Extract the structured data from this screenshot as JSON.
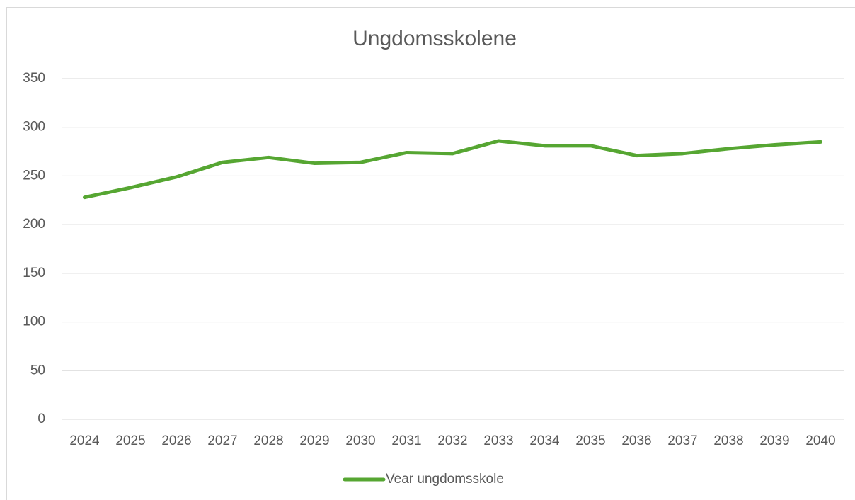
{
  "chart_data": {
    "type": "line",
    "title": "Ungdomsskolene",
    "categories": [
      "2024",
      "2025",
      "2026",
      "2027",
      "2028",
      "2029",
      "2030",
      "2031",
      "2032",
      "2033",
      "2034",
      "2035",
      "2036",
      "2037",
      "2038",
      "2039",
      "2040"
    ],
    "series": [
      {
        "name": "Vear ungdomsskole",
        "color": "#56a632",
        "values": [
          228,
          238,
          249,
          264,
          269,
          263,
          264,
          274,
          273,
          286,
          281,
          281,
          271,
          273,
          278,
          282,
          285
        ]
      }
    ],
    "ylim": [
      0,
      350
    ],
    "yticks": [
      0,
      50,
      100,
      150,
      200,
      250,
      300,
      350
    ],
    "grid": true,
    "legend": "bottom"
  }
}
